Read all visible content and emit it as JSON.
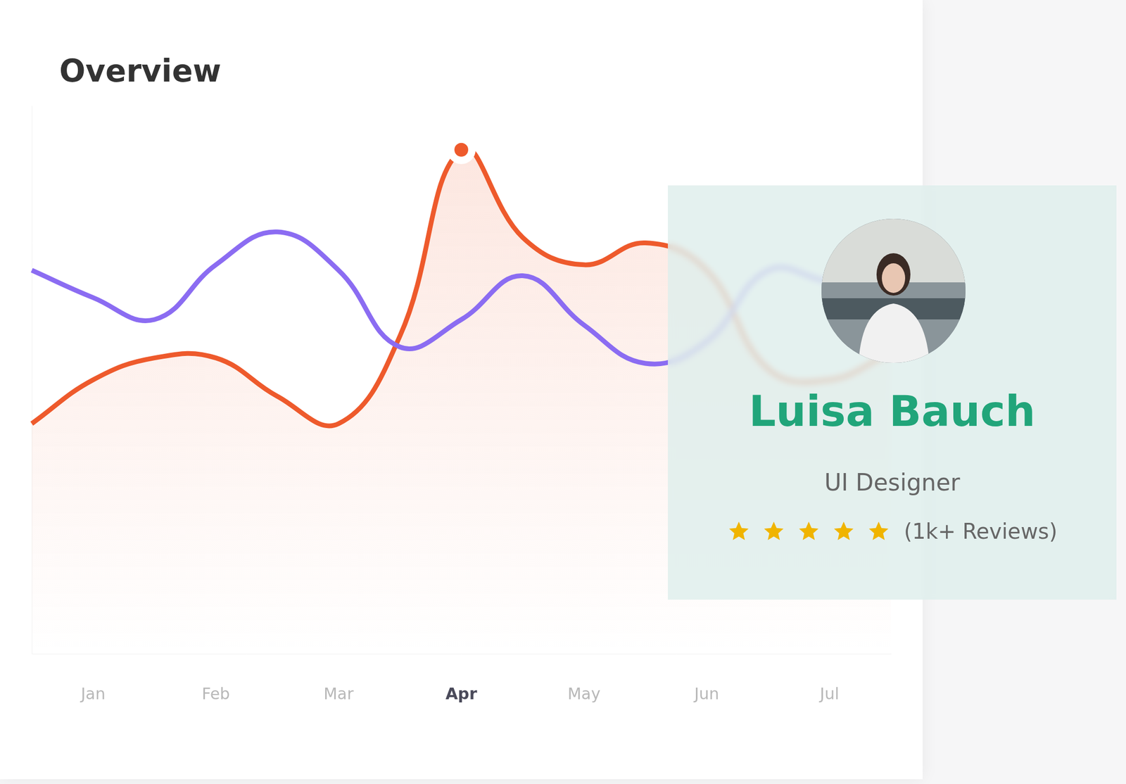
{
  "chart_data": {
    "type": "line",
    "title": "Overview",
    "categories": [
      null,
      "Jan",
      null,
      "Feb",
      null,
      "Mar",
      null,
      "Apr",
      null,
      "May",
      null,
      "Jun",
      null,
      "Jul",
      null
    ],
    "series": [
      {
        "color": "#ee5a2c",
        "marker": "circle",
        "values": [
          42,
          50,
          54,
          54,
          47,
          42,
          58,
          92,
          76,
          71,
          75,
          70,
          52,
          50,
          55
        ]
      },
      {
        "color": "#8b6cf2",
        "values": [
          70,
          65,
          61,
          71,
          77,
          70,
          56,
          61,
          69,
          60,
          53,
          57,
          70,
          68,
          68
        ]
      }
    ],
    "ylim": [
      0,
      100
    ],
    "grid": false,
    "tick_labels": "x"
  },
  "profile": {
    "name": "Luisa Bauch",
    "role": "UI Designer",
    "rating": 5,
    "reviews": "(1k+ Reviews)"
  }
}
